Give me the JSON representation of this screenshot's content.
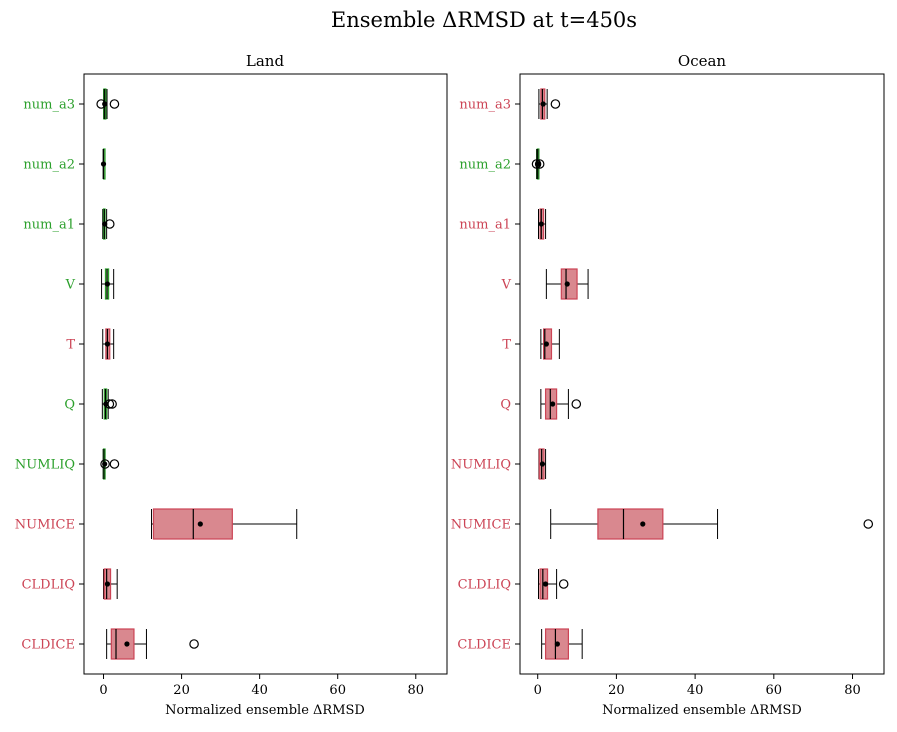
{
  "chart_data": {
    "type": "boxplot",
    "title": "Ensemble ΔRMSD at t=450s",
    "colors": {
      "positive": "#cc4455",
      "negative": "#2ca02c",
      "box_red": "#d9888f",
      "box_green": "#8fcf85"
    },
    "panels": [
      {
        "title": "Land",
        "xlabel": "Normalized ensemble ΔRMSD",
        "xlim": [
          -5,
          88
        ],
        "xticks": [
          0,
          20,
          40,
          60,
          80
        ],
        "variables": [
          {
            "name": "num_a3",
            "label_color": "green",
            "box_color": "green",
            "whislo": 0.0,
            "q1": 0.1,
            "med": 0.3,
            "q3": 0.6,
            "whishi": 0.9,
            "mean": 0.3,
            "fliers": [
              -0.6,
              2.8
            ]
          },
          {
            "name": "num_a2",
            "label_color": "green",
            "box_color": "green",
            "whislo": -0.1,
            "q1": 0.0,
            "med": 0.0,
            "q3": 0.05,
            "whishi": 0.1,
            "mean": 0.0,
            "fliers": []
          },
          {
            "name": "num_a1",
            "label_color": "green",
            "box_color": "green",
            "whislo": -0.2,
            "q1": 0.0,
            "med": 0.2,
            "q3": 0.4,
            "whishi": 0.8,
            "mean": 0.3,
            "fliers": [
              1.6
            ]
          },
          {
            "name": "V",
            "label_color": "green",
            "box_color": "green",
            "whislo": -0.5,
            "q1": 0.5,
            "med": 0.9,
            "q3": 1.3,
            "whishi": 2.6,
            "mean": 1.0,
            "fliers": []
          },
          {
            "name": "T",
            "label_color": "red",
            "box_color": "red",
            "whislo": -0.2,
            "q1": 0.6,
            "med": 1.0,
            "q3": 1.6,
            "whishi": 2.6,
            "mean": 1.0,
            "fliers": []
          },
          {
            "name": "Q",
            "label_color": "green",
            "box_color": "green",
            "whislo": -0.3,
            "q1": 0.2,
            "med": 0.5,
            "q3": 0.8,
            "whishi": 1.2,
            "mean": 0.6,
            "fliers": [
              1.5,
              2.2
            ]
          },
          {
            "name": "NUMLIQ",
            "label_color": "green",
            "box_color": "green",
            "whislo": -0.1,
            "q1": 0.0,
            "med": 0.1,
            "q3": 0.2,
            "whishi": 0.4,
            "mean": 0.3,
            "fliers": [
              0.4,
              2.8
            ]
          },
          {
            "name": "NUMICE",
            "label_color": "red",
            "box_color": "red",
            "whislo": 12.3,
            "q1": 12.8,
            "med": 23.0,
            "q3": 33.0,
            "whishi": 49.5,
            "mean": 24.8,
            "fliers": []
          },
          {
            "name": "CLDLIQ",
            "label_color": "red",
            "box_color": "red",
            "whislo": 0.0,
            "q1": 0.2,
            "med": 0.8,
            "q3": 1.8,
            "whishi": 3.5,
            "mean": 1.0,
            "fliers": []
          },
          {
            "name": "CLDICE",
            "label_color": "red",
            "box_color": "red",
            "whislo": 0.8,
            "q1": 2.0,
            "med": 3.2,
            "q3": 7.8,
            "whishi": 11.0,
            "mean": 6.0,
            "fliers": [
              23.2
            ]
          }
        ]
      },
      {
        "title": "Ocean",
        "xlabel": "Normalized ensemble ΔRMSD",
        "xlim": [
          -4.5,
          88
        ],
        "xticks": [
          0,
          20,
          40,
          60,
          80
        ],
        "variables": [
          {
            "name": "num_a3",
            "label_color": "red",
            "box_color": "red",
            "whislo": 0.3,
            "q1": 0.8,
            "med": 1.2,
            "q3": 1.8,
            "whishi": 2.4,
            "mean": 1.4,
            "fliers": [
              4.5
            ]
          },
          {
            "name": "num_a2",
            "label_color": "green",
            "box_color": "green",
            "whislo": -0.3,
            "q1": -0.1,
            "med": 0.0,
            "q3": 0.1,
            "whishi": 0.3,
            "mean": 0.2,
            "fliers": [
              -0.3,
              0.5
            ]
          },
          {
            "name": "num_a1",
            "label_color": "red",
            "box_color": "red",
            "whislo": 0.2,
            "q1": 0.6,
            "med": 0.9,
            "q3": 1.5,
            "whishi": 2.0,
            "mean": 0.9,
            "fliers": []
          },
          {
            "name": "V",
            "label_color": "red",
            "box_color": "red",
            "whislo": 2.2,
            "q1": 6.0,
            "med": 7.2,
            "q3": 10.0,
            "whishi": 12.8,
            "mean": 7.5,
            "fliers": []
          },
          {
            "name": "T",
            "label_color": "red",
            "box_color": "red",
            "whislo": 0.8,
            "q1": 1.5,
            "med": 1.8,
            "q3": 3.5,
            "whishi": 5.5,
            "mean": 2.2,
            "fliers": []
          },
          {
            "name": "Q",
            "label_color": "red",
            "box_color": "red",
            "whislo": 0.8,
            "q1": 2.0,
            "med": 3.2,
            "q3": 4.8,
            "whishi": 7.8,
            "mean": 3.8,
            "fliers": [
              9.8
            ]
          },
          {
            "name": "NUMLIQ",
            "label_color": "red",
            "box_color": "red",
            "whislo": 0.3,
            "q1": 0.4,
            "med": 1.0,
            "q3": 1.6,
            "whishi": 2.0,
            "mean": 1.2,
            "fliers": []
          },
          {
            "name": "NUMICE",
            "label_color": "red",
            "box_color": "red",
            "whislo": 3.3,
            "q1": 15.3,
            "med": 21.8,
            "q3": 31.8,
            "whishi": 45.7,
            "mean": 26.7,
            "fliers": [
              84.0
            ]
          },
          {
            "name": "CLDLIQ",
            "label_color": "red",
            "box_color": "red",
            "whislo": 0.2,
            "q1": 0.6,
            "med": 1.3,
            "q3": 2.5,
            "whishi": 4.8,
            "mean": 2.0,
            "fliers": [
              6.6
            ]
          },
          {
            "name": "CLDICE",
            "label_color": "red",
            "box_color": "red",
            "whislo": 1.0,
            "q1": 2.0,
            "med": 4.5,
            "q3": 7.8,
            "whishi": 11.3,
            "mean": 5.0,
            "fliers": []
          }
        ]
      }
    ]
  }
}
